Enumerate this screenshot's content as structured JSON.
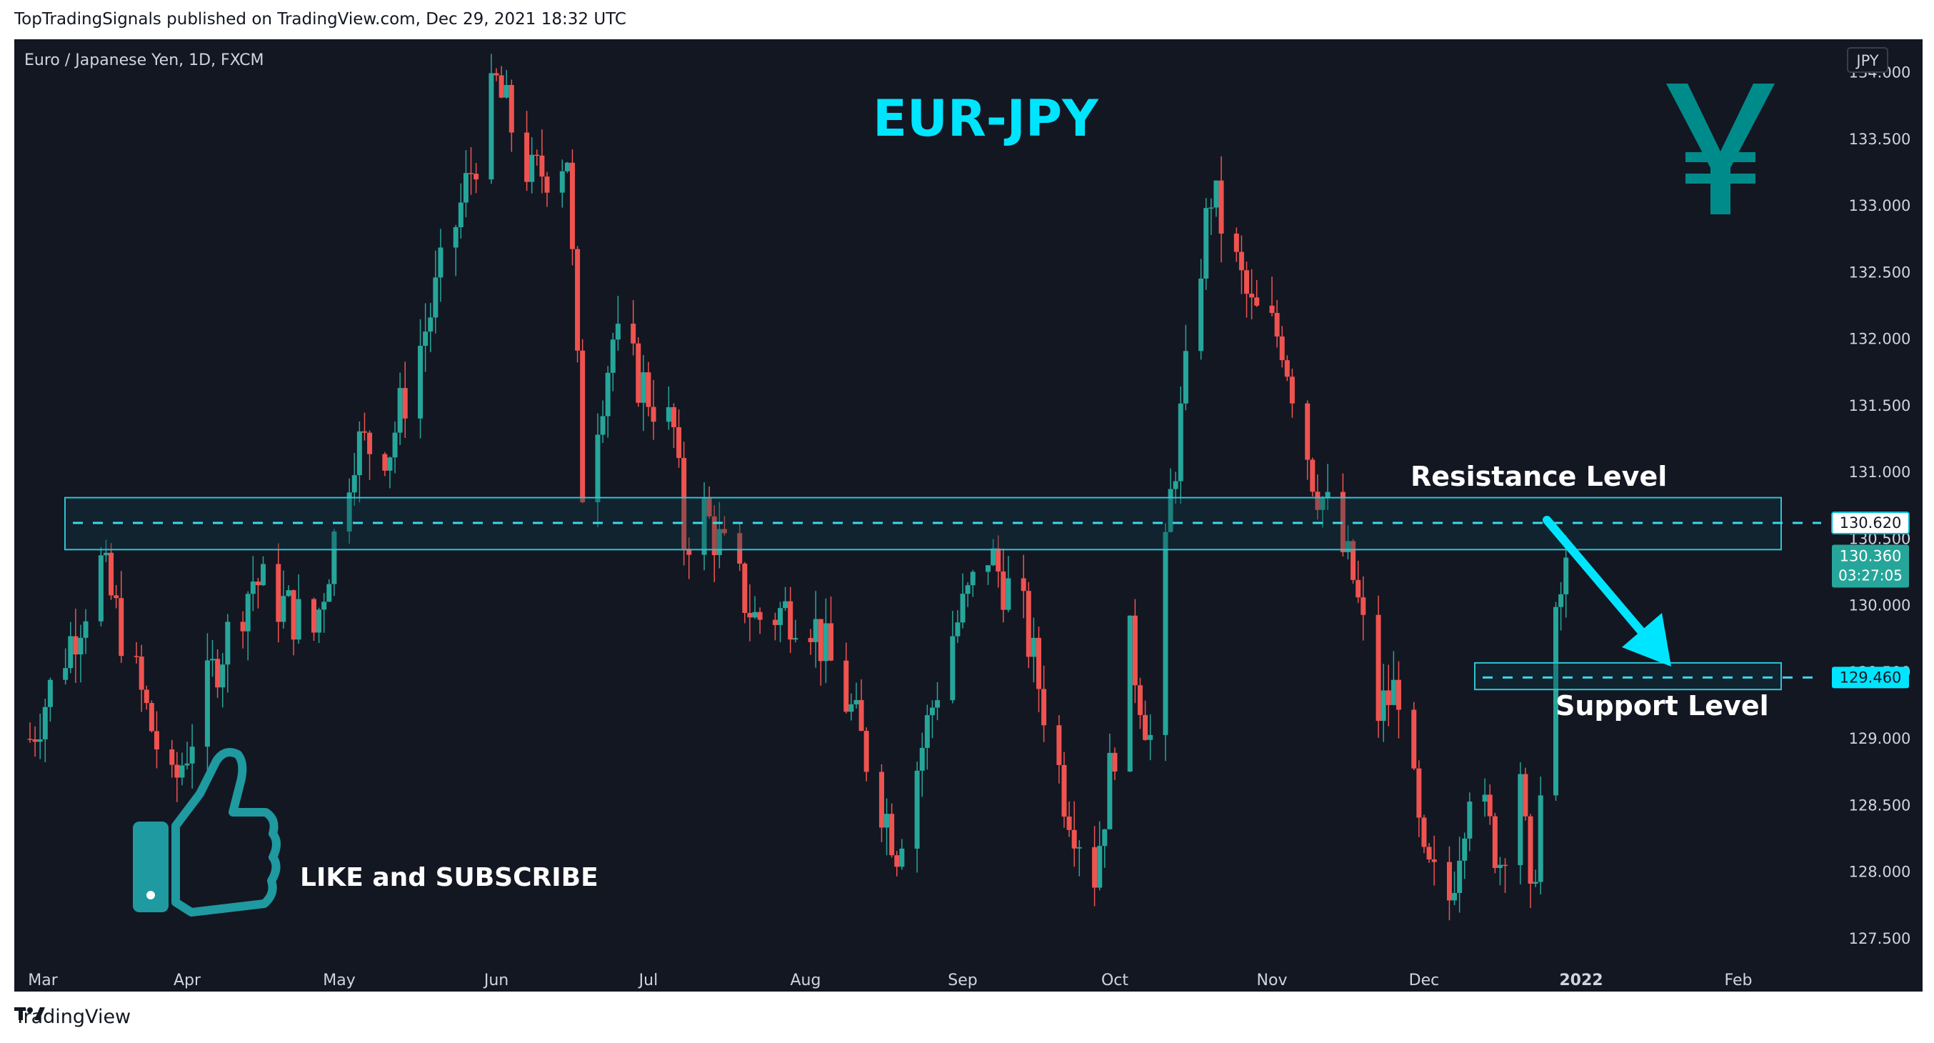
{
  "header": {
    "published_by": "TopTradingSignals published on TradingView.com, Dec 29, 2021 18:32 UTC"
  },
  "footer": {
    "brand": "TradingView",
    "logo_icon": "tradingview-logo-icon"
  },
  "chart_data": {
    "type": "candlestick",
    "symbol_label": "Euro / Japanese Yen, 1D, FXCM",
    "title": "EUR-JPY",
    "currency_badge": "JPY",
    "y_ticks": [
      127.5,
      128.0,
      128.5,
      129.0,
      129.5,
      130.0,
      130.5,
      131.0,
      131.5,
      132.0,
      132.5,
      133.0,
      133.5,
      134.0
    ],
    "y_tick_labels": [
      "127.500",
      "128.000",
      "128.500",
      "129.000",
      "129.500",
      "130.000",
      "130.500",
      "131.000",
      "131.500",
      "132.000",
      "132.500",
      "133.000",
      "133.500",
      "134.000"
    ],
    "ylim": [
      127.28,
      134.25
    ],
    "x_axis_labels": [
      "Mar",
      "Apr",
      "May",
      "Jun",
      "Jul",
      "Aug",
      "Sep",
      "Oct",
      "Nov",
      "Dec",
      "2022",
      "Feb"
    ],
    "x_axis_days": [
      0,
      31,
      61,
      92,
      122,
      153,
      184,
      214,
      245,
      275,
      306,
      337
    ],
    "x_last_day": 362,
    "key_closes": [
      {
        "date": "2021-03-01",
        "close": 129.0
      },
      {
        "date": "2021-03-15",
        "close": 130.3
      },
      {
        "date": "2021-03-24",
        "close": 129.2
      },
      {
        "date": "2021-03-29",
        "close": 128.6
      },
      {
        "date": "2021-04-07",
        "close": 129.6
      },
      {
        "date": "2021-04-14",
        "close": 130.2
      },
      {
        "date": "2021-04-26",
        "close": 129.8
      },
      {
        "date": "2021-05-04",
        "close": 131.2
      },
      {
        "date": "2021-05-11",
        "close": 131.2
      },
      {
        "date": "2021-05-19",
        "close": 132.2
      },
      {
        "date": "2021-05-28",
        "close": 133.4
      },
      {
        "date": "2021-06-01",
        "close": 133.9
      },
      {
        "date": "2021-06-08",
        "close": 133.2
      },
      {
        "date": "2021-06-15",
        "close": 133.4
      },
      {
        "date": "2021-06-18",
        "close": 130.9
      },
      {
        "date": "2021-06-24",
        "close": 132.0
      },
      {
        "date": "2021-07-06",
        "close": 131.3
      },
      {
        "date": "2021-07-08",
        "close": 130.5
      },
      {
        "date": "2021-07-12",
        "close": 130.7
      },
      {
        "date": "2021-07-22",
        "close": 129.9
      },
      {
        "date": "2021-08-01",
        "close": 130.0
      },
      {
        "date": "2021-08-10",
        "close": 129.2
      },
      {
        "date": "2021-08-19",
        "close": 128.2
      },
      {
        "date": "2021-08-29",
        "close": 129.7
      },
      {
        "date": "2021-09-06",
        "close": 130.4
      },
      {
        "date": "2021-09-13",
        "close": 129.9
      },
      {
        "date": "2021-09-21",
        "close": 128.6
      },
      {
        "date": "2021-09-27",
        "close": 128.0
      },
      {
        "date": "2021-10-04",
        "close": 129.7
      },
      {
        "date": "2021-10-08",
        "close": 129.0
      },
      {
        "date": "2021-10-12",
        "close": 130.8
      },
      {
        "date": "2021-10-18",
        "close": 132.6
      },
      {
        "date": "2021-10-20",
        "close": 133.1
      },
      {
        "date": "2021-10-28",
        "close": 132.2
      },
      {
        "date": "2021-11-03",
        "close": 132.0
      },
      {
        "date": "2021-11-09",
        "close": 131.0
      },
      {
        "date": "2021-11-17",
        "close": 130.2
      },
      {
        "date": "2021-11-22",
        "close": 129.2
      },
      {
        "date": "2021-11-26",
        "close": 129.4
      },
      {
        "date": "2021-12-01",
        "close": 128.0
      },
      {
        "date": "2021-12-06",
        "close": 127.8
      },
      {
        "date": "2021-12-10",
        "close": 128.7
      },
      {
        "date": "2021-12-16",
        "close": 128.1
      },
      {
        "date": "2021-12-20",
        "close": 128.8
      },
      {
        "date": "2021-12-22",
        "close": 127.7
      },
      {
        "date": "2021-12-27",
        "close": 129.8
      },
      {
        "date": "2021-12-29",
        "close": 130.36
      }
    ],
    "resistance": {
      "label": "Resistance Level",
      "level": 130.62,
      "zone": [
        130.42,
        130.81
      ],
      "price_label": "130.620"
    },
    "support": {
      "label": "Support Level",
      "level": 129.46,
      "zone": [
        129.37,
        129.57
      ],
      "price_label": "129.460"
    },
    "current_price": {
      "price_label": "130.360",
      "countdown": "03:27:05"
    },
    "annotations": {
      "cta": "LIKE and SUBSCRIBE",
      "thumbs_icon": "thumbs-up-icon",
      "yen_icon": "yen-sign-icon",
      "arrow_icon": "down-arrow-icon"
    },
    "colors": {
      "background": "#131722",
      "up": "#26a69a",
      "down": "#ef5350",
      "accent": "#00e5ff",
      "zone_border": "#2ec4d4",
      "icon_teal": "#008b8b"
    }
  }
}
